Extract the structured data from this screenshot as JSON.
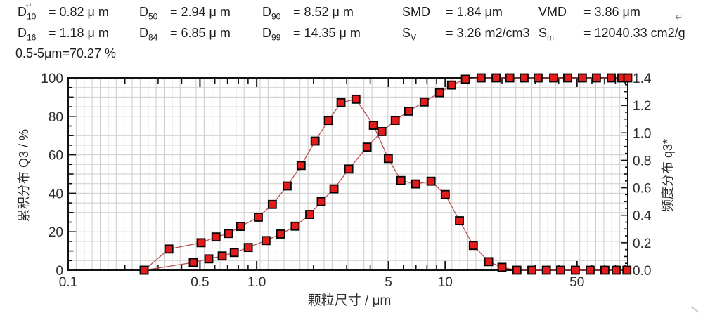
{
  "header": {
    "return_mark": "↵",
    "row1": [
      {
        "name": "D",
        "sub": "10",
        "value": "= 0.82 μ m"
      },
      {
        "name": "D",
        "sub": "50",
        "value": "= 2.94 μ m"
      },
      {
        "name": "D",
        "sub": "90",
        "value": "= 8.52 μ m"
      },
      {
        "name": "SMD",
        "sub": "",
        "value": "= 1.84 μm"
      },
      {
        "name": "VMD",
        "sub": "",
        "value": "= 3.86 μm"
      }
    ],
    "row2": [
      {
        "name": "D",
        "sub": "16",
        "value": "= 1.18 μ m"
      },
      {
        "name": "D",
        "sub": "84",
        "value": "= 6.85 μ m"
      },
      {
        "name": "D",
        "sub": "99",
        "value": "= 14.35 μ m"
      },
      {
        "name": "S",
        "sub": "V",
        "value": "= 3.26 m2/cm3"
      },
      {
        "name": "S",
        "sub": "m",
        "value": "= 12040.33 cm2/g"
      }
    ],
    "row3": "0.5-5μm=70.27 %"
  },
  "colors": {
    "curve_line": "#b85252",
    "marker_fill": "#e31b1b",
    "marker_stroke": "#000000",
    "grid": "#cbcbcb",
    "frame": "#111111",
    "text": "#2e2e2e"
  },
  "chart_data": {
    "type": "line",
    "title": "",
    "grid": "uniform rectangular grid, boxed frame, inward ticks",
    "x_axis": {
      "label": "颗粒尺寸 / μm",
      "scale": "log",
      "min": 0.1,
      "max": 93,
      "labeled_ticks": [
        {
          "v": 0.1,
          "label": "0.1"
        },
        {
          "v": 0.5,
          "label": "0.5"
        },
        {
          "v": 1,
          "label": "1.0"
        },
        {
          "v": 5,
          "label": "5"
        },
        {
          "v": 10,
          "label": "10"
        },
        {
          "v": 50,
          "label": "50"
        }
      ],
      "minor_ticks": [
        0.2,
        0.3,
        0.4,
        0.6,
        0.7,
        0.8,
        0.9,
        2,
        3,
        4,
        6,
        7,
        8,
        9,
        20,
        30,
        40,
        60,
        70,
        80,
        90
      ]
    },
    "y_left": {
      "label": "累积分布 Q3 / %",
      "min": 0,
      "max": 100,
      "major": 20,
      "minor": 5,
      "labels": [
        "0",
        "20",
        "40",
        "60",
        "80",
        "100"
      ]
    },
    "y_right": {
      "label": "频度分布 q3*",
      "min": 0,
      "max": 1.4,
      "major": 0.2,
      "minor": 0.05,
      "labels": [
        "0.0",
        "0.2",
        "0.4",
        "0.6",
        "0.8",
        "1.0",
        "1.2",
        "1.4"
      ]
    },
    "series": [
      {
        "id": "cumulative",
        "name": "累积分布 Q3",
        "axis": "left",
        "x": [
          0.253,
          0.461,
          0.557,
          0.656,
          0.76,
          0.902,
          1.12,
          1.34,
          1.6,
          1.91,
          2.2,
          2.57,
          3.08,
          3.85,
          4.61,
          5.43,
          6.4,
          7.73,
          9.33,
          10.8,
          12.8,
          15.5,
          18.6,
          22.0,
          26.2,
          31.1,
          37.6,
          44.6,
          53.4,
          63.4,
          76.0,
          86.4,
          93.0
        ],
        "values": [
          0,
          4.0,
          5.9,
          7.4,
          9.2,
          11.8,
          15.4,
          18.8,
          22.9,
          29.0,
          35.7,
          42.3,
          52.6,
          64.0,
          72.1,
          77.9,
          82.7,
          87.5,
          92.3,
          96.3,
          99.3,
          100,
          100,
          100,
          100,
          100,
          100,
          100,
          100,
          100,
          100,
          100,
          100
        ]
      },
      {
        "id": "frequency",
        "name": "频度分布 q3*",
        "axis": "right",
        "x": [
          0.253,
          0.342,
          0.507,
          0.608,
          0.709,
          0.821,
          1.02,
          1.21,
          1.45,
          1.72,
          2.04,
          2.4,
          2.8,
          3.36,
          4.16,
          4.99,
          5.82,
          6.97,
          8.41,
          10.0,
          11.9,
          14.1,
          17.0,
          20.0,
          24.0,
          28.8,
          34.4,
          40.9,
          49.0,
          58.7,
          70.3,
          80.7,
          92.0
        ],
        "values": [
          0,
          0.154,
          0.2,
          0.242,
          0.267,
          0.319,
          0.386,
          0.479,
          0.613,
          0.762,
          0.94,
          1.09,
          1.22,
          1.245,
          1.055,
          0.813,
          0.653,
          0.628,
          0.648,
          0.551,
          0.36,
          0.18,
          0.062,
          0.021,
          0,
          0,
          0,
          0,
          0,
          0,
          0,
          0,
          0
        ]
      }
    ]
  }
}
